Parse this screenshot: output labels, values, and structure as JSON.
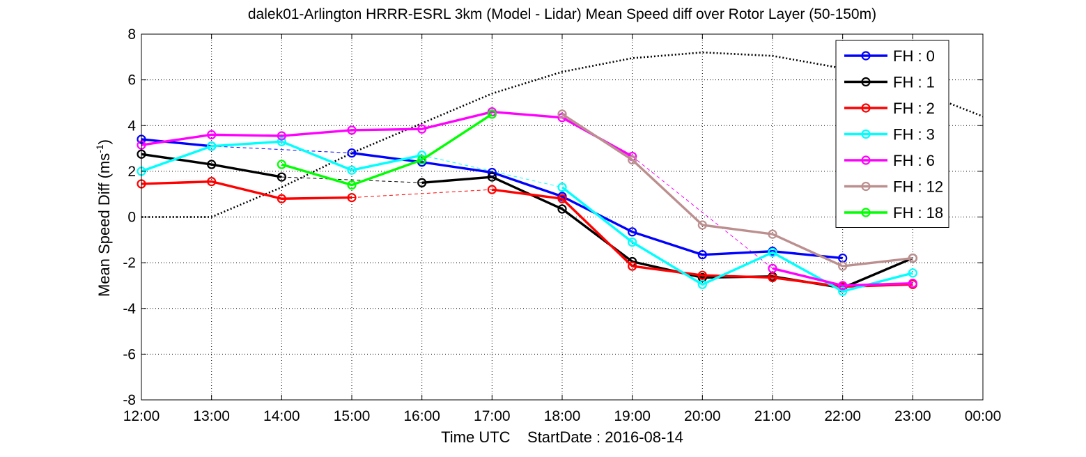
{
  "chart_data": {
    "type": "line",
    "title": "dalek01-Arlington HRRR-ESRL 3km (Model - Lidar) Mean Speed diff over Rotor Layer (50-150m)",
    "xlabel": "Time UTC    StartDate : 2016-08-14",
    "ylabel_main": "Mean Speed Diff (ms",
    "ylabel_sup": "-1",
    "ylabel_close": ")",
    "x_tick_labels": [
      "12:00",
      "13:00",
      "14:00",
      "15:00",
      "16:00",
      "17:00",
      "18:00",
      "19:00",
      "20:00",
      "21:00",
      "22:00",
      "23:00",
      "00:00"
    ],
    "y_ticks": [
      -8,
      -6,
      -4,
      -2,
      0,
      2,
      4,
      6,
      8
    ],
    "xlim": [
      0,
      12
    ],
    "ylim": [
      -8,
      8
    ],
    "grid": true,
    "legend_position": "top-right",
    "series": [
      {
        "name": "FH : 0",
        "color": "#0000ff",
        "points": [
          [
            0,
            3.4
          ],
          [
            1,
            3.1
          ],
          [
            3,
            2.8
          ],
          [
            4,
            2.4
          ],
          [
            5,
            1.95
          ],
          [
            6,
            0.9
          ],
          [
            7,
            -0.65
          ],
          [
            8,
            -1.65
          ],
          [
            9,
            -1.5
          ],
          [
            10,
            -1.8
          ]
        ],
        "gaps": [
          [
            1,
            3
          ]
        ]
      },
      {
        "name": "FH : 1",
        "color": "#000000",
        "points": [
          [
            0,
            2.75
          ],
          [
            1,
            2.3
          ],
          [
            2,
            1.75
          ],
          [
            4,
            1.5
          ],
          [
            5,
            1.75
          ],
          [
            6,
            0.35
          ],
          [
            7,
            -1.95
          ],
          [
            8,
            -2.65
          ],
          [
            9,
            -2.6
          ],
          [
            10,
            -3.1
          ],
          [
            11,
            -1.8
          ]
        ],
        "gaps": [
          [
            2,
            4
          ]
        ]
      },
      {
        "name": "FH : 2",
        "color": "#ff0000",
        "points": [
          [
            0,
            1.45
          ],
          [
            1,
            1.55
          ],
          [
            2,
            0.8
          ],
          [
            3,
            0.85
          ],
          [
            5,
            1.2
          ],
          [
            6,
            0.8
          ],
          [
            7,
            -2.15
          ],
          [
            8,
            -2.55
          ],
          [
            9,
            -2.65
          ],
          [
            10,
            -3.05
          ],
          [
            11,
            -2.95
          ]
        ],
        "gaps": [
          [
            3,
            5
          ]
        ]
      },
      {
        "name": "FH : 3",
        "color": "#00ffff",
        "points": [
          [
            0,
            2.0
          ],
          [
            1,
            3.1
          ],
          [
            2,
            3.3
          ],
          [
            3,
            2.05
          ],
          [
            4,
            2.7
          ],
          [
            6,
            1.3
          ],
          [
            7,
            -1.1
          ],
          [
            8,
            -2.95
          ],
          [
            9,
            -1.55
          ],
          [
            10,
            -3.25
          ],
          [
            11,
            -2.45
          ]
        ],
        "gaps": [
          [
            4,
            6
          ]
        ]
      },
      {
        "name": "FH : 6",
        "color": "#ff00ff",
        "points": [
          [
            0,
            3.15
          ],
          [
            1,
            3.6
          ],
          [
            2,
            3.55
          ],
          [
            3,
            3.8
          ],
          [
            4,
            3.85
          ],
          [
            5,
            4.6
          ],
          [
            6,
            4.35
          ],
          [
            7,
            2.65
          ],
          [
            9,
            -2.25
          ],
          [
            10,
            -3.0
          ],
          [
            11,
            -2.9
          ]
        ],
        "gaps": [
          [
            7,
            9
          ]
        ]
      },
      {
        "name": "FH : 12",
        "color": "#bc8f8f",
        "points": [
          [
            6,
            4.5
          ],
          [
            7,
            2.5
          ],
          [
            8,
            -0.35
          ],
          [
            9,
            -0.75
          ],
          [
            10,
            -2.15
          ],
          [
            11,
            -1.8
          ]
        ],
        "gaps": []
      },
      {
        "name": "FH : 18",
        "color": "#00ff00",
        "points": [
          [
            2,
            2.3
          ],
          [
            3,
            1.4
          ],
          [
            4,
            2.5
          ],
          [
            5,
            4.5
          ]
        ],
        "gaps": []
      }
    ],
    "reference_curve": {
      "style": "dotted",
      "color": "#000000",
      "points": [
        [
          0,
          0
        ],
        [
          1,
          0
        ],
        [
          2,
          1.3
        ],
        [
          3,
          2.8
        ],
        [
          4,
          4.1
        ],
        [
          5,
          5.4
        ],
        [
          6,
          6.35
        ],
        [
          7,
          6.95
        ],
        [
          8,
          7.2
        ],
        [
          9,
          7.05
        ],
        [
          10,
          6.5
        ],
        [
          11,
          5.6
        ],
        [
          12,
          4.4
        ]
      ]
    }
  }
}
